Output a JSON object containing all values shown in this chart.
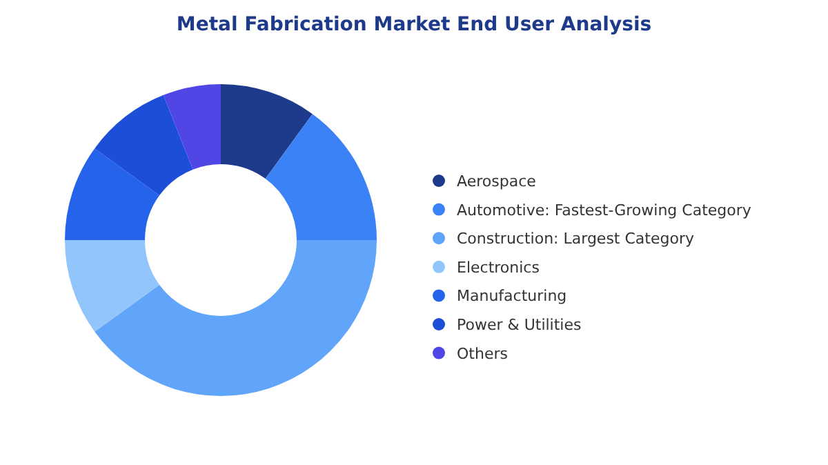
{
  "chart_data": {
    "type": "donut",
    "title": "Metal Fabrication Market End User Analysis",
    "categories": [
      "Aerospace",
      "Automotive: Fastest-Growing Category",
      "Construction: Largest Category",
      "Electronics",
      "Manufacturing",
      "Power & Utilities",
      "Others"
    ],
    "values": [
      10,
      15,
      40,
      10,
      10,
      9,
      6
    ],
    "colors": [
      "#1e3a8a",
      "#3b82f6",
      "#60a5fa",
      "#93c5fd",
      "#2563eb",
      "#1d4ed8",
      "#4f46e5"
    ],
    "legend": "right"
  }
}
